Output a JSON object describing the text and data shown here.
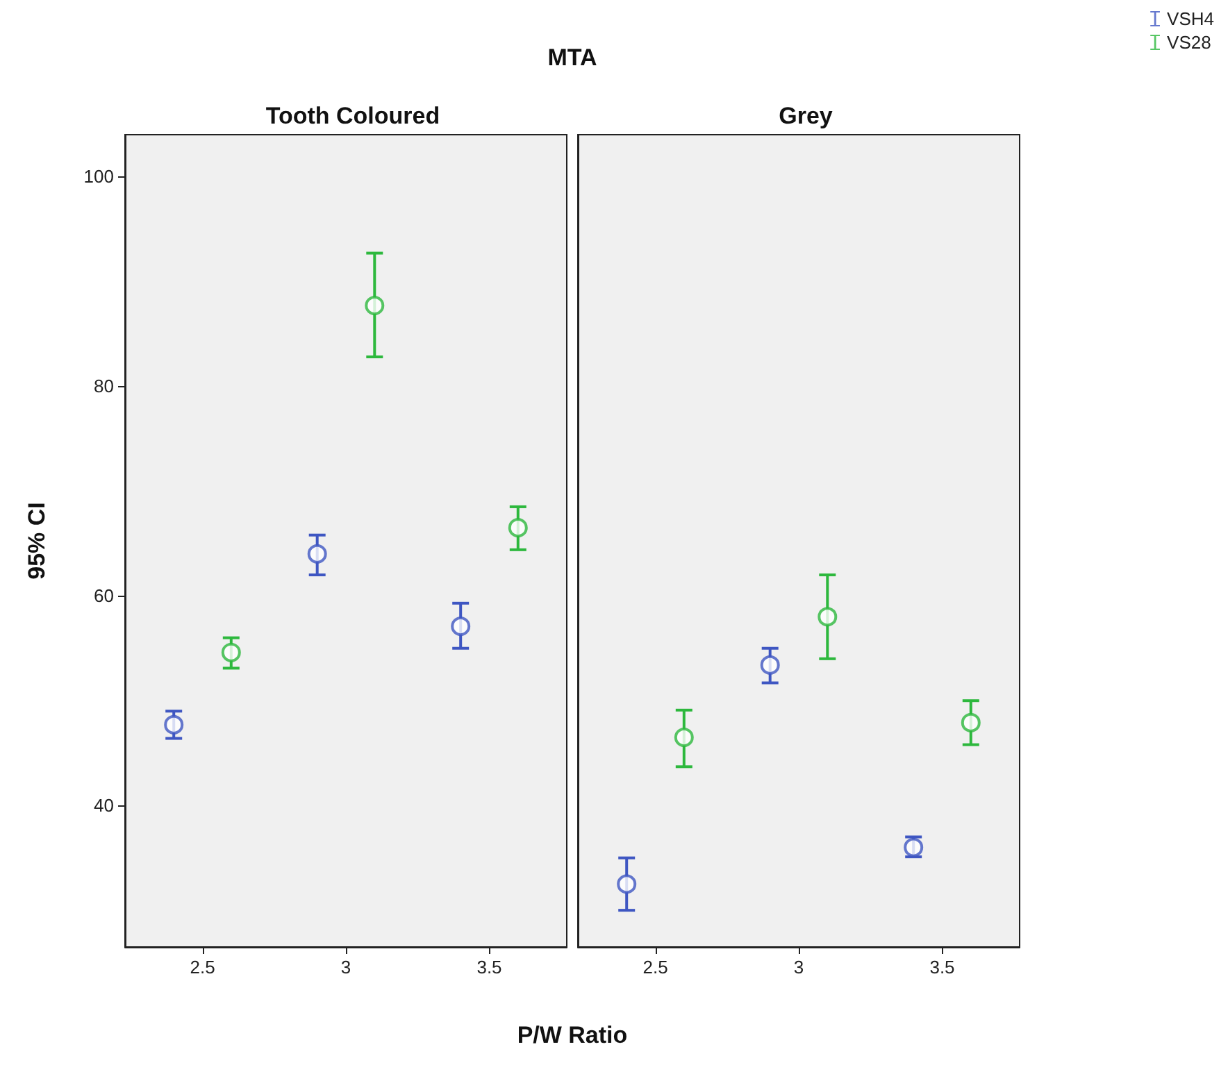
{
  "chart_data": [
    {
      "type": "scatter",
      "title": "Tooth Coloured",
      "annotations": [
        "MTA"
      ],
      "xlabel": "P/W Ratio",
      "ylabel": "95% CI",
      "xlim": [
        2.23,
        3.77
      ],
      "xticks": [
        2.5,
        3,
        3.5
      ],
      "ylim": [
        26.5,
        104
      ],
      "yticks": [
        40,
        60,
        80,
        100
      ],
      "grid": false,
      "marker": "circle",
      "series": [
        {
          "color": "#3e56c2",
          "x": [
            2.4,
            2.9,
            3.4
          ],
          "values": [
            47.7,
            64.0,
            57.1
          ],
          "errors": [
            [
              46.4,
              49.0
            ],
            [
              62.0,
              65.8
            ],
            [
              55.0,
              59.3
            ]
          ]
        },
        {
          "color": "#2db83d",
          "x": [
            2.6,
            3.1,
            3.6
          ],
          "values": [
            54.6,
            87.7,
            66.5
          ],
          "errors": [
            [
              53.1,
              56.0
            ],
            [
              82.8,
              92.7
            ],
            [
              64.4,
              68.5
            ]
          ]
        }
      ]
    },
    {
      "type": "scatter",
      "title": "Grey",
      "xlim": [
        2.23,
        3.77
      ],
      "xticks": [
        2.5,
        3,
        3.5
      ],
      "ylim": [
        26.5,
        104
      ],
      "yticks": [
        40,
        60,
        80,
        100
      ],
      "tick_labels": "x",
      "grid": false,
      "marker": "circle",
      "legend": "top right",
      "series": [
        {
          "name": "VSH4",
          "color": "#3e56c2",
          "x": [
            2.4,
            2.9,
            3.4
          ],
          "values": [
            32.5,
            53.4,
            36.0
          ],
          "errors": [
            [
              30.0,
              35.0
            ],
            [
              51.7,
              55.0
            ],
            [
              35.1,
              37.0
            ]
          ]
        },
        {
          "name": "VS28",
          "color": "#2db83d",
          "x": [
            2.6,
            3.1,
            3.6
          ],
          "values": [
            46.5,
            58.0,
            47.9
          ],
          "errors": [
            [
              43.7,
              49.1
            ],
            [
              54.0,
              62.0
            ],
            [
              45.8,
              50.0
            ]
          ]
        }
      ]
    }
  ]
}
